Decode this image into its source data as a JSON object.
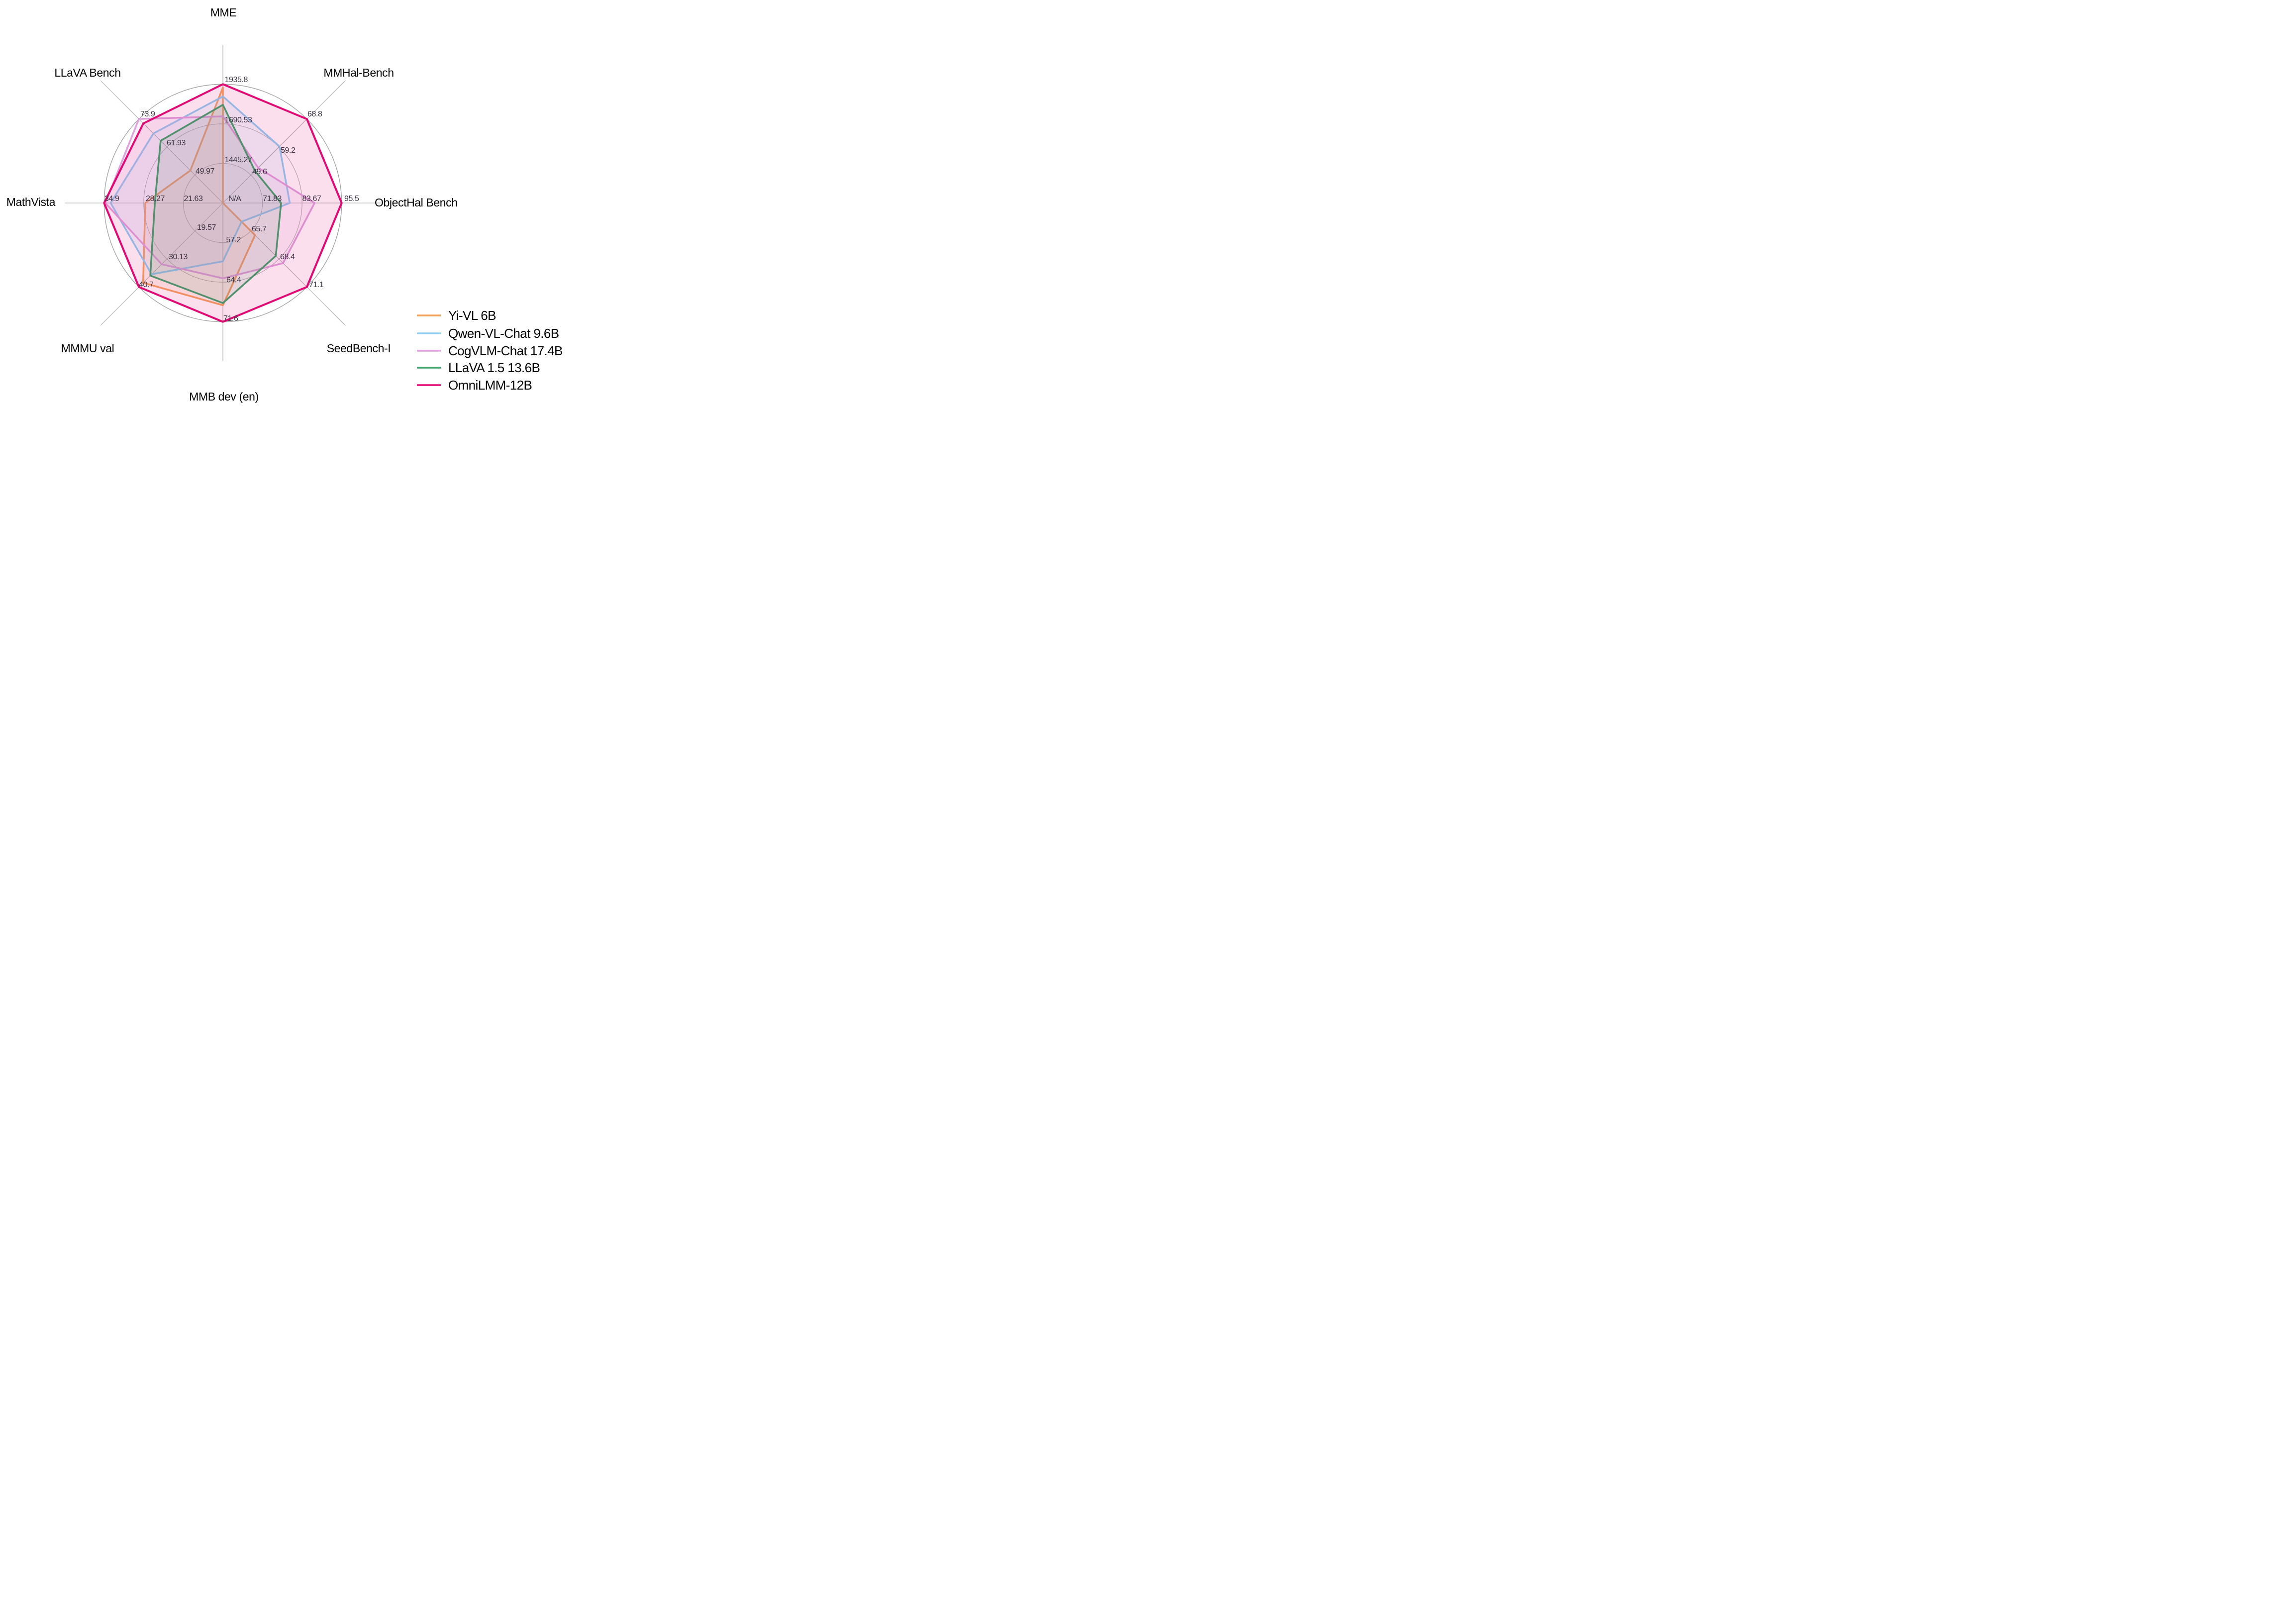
{
  "chart_data": {
    "type": "radar",
    "title": "",
    "legend_position": "lower right",
    "grid": "3 concentric rings + 8 spokes",
    "center_label": "N/A",
    "axes": [
      {
        "label": "MME",
        "min": 1200,
        "max": 1935.8,
        "ticks": [
          "1445.27",
          "1690.53",
          "1935.8"
        ]
      },
      {
        "label": "MMHal-Bench",
        "min": 40,
        "max": 68.8,
        "ticks": [
          "49.6",
          "59.2",
          "68.8"
        ]
      },
      {
        "label": "ObjectHal Bench",
        "min": 60,
        "max": 95.5,
        "ticks": [
          "71.83",
          "83.67",
          "95.5"
        ],
        "center_label": "N/A"
      },
      {
        "label": "SeedBench-I",
        "min": 63,
        "max": 71.1,
        "ticks": [
          "65.7",
          "68.4",
          "71.1"
        ]
      },
      {
        "label": "MMB dev (en)",
        "min": 50,
        "max": 71.6,
        "ticks": [
          "57.2",
          "64.4",
          "71.6"
        ]
      },
      {
        "label": "MMMU val",
        "min": 9,
        "max": 40.7,
        "ticks": [
          "19.57",
          "30.13",
          "40.7"
        ]
      },
      {
        "label": "MathVista",
        "min": 15,
        "max": 34.9,
        "ticks": [
          "21.63",
          "28.27",
          "34.9"
        ]
      },
      {
        "label": "LLaVA Bench",
        "min": 38,
        "max": 73.9,
        "ticks": [
          "49.97",
          "61.93",
          "73.9"
        ]
      }
    ],
    "series": [
      {
        "name": "Yi-VL 6B",
        "color": "#F5A25D",
        "values": [
          1915.1,
          null,
          null,
          66.1,
          68.6,
          39.1,
          28.0,
          51.9
        ]
      },
      {
        "name": "Qwen-VL-Chat 9.6B",
        "color": "#8DCFF4",
        "values": [
          1860.0,
          59.4,
          80.0,
          64.8,
          60.6,
          35.9,
          33.8,
          67.7
        ]
      },
      {
        "name": "CogVLM-Chat 17.4B",
        "color": "#DEA3DE",
        "values": [
          1736.6,
          52.1,
          87.4,
          68.8,
          63.7,
          32.1,
          34.7,
          73.9
        ]
      },
      {
        "name": "LLaVA 1.5 13.6B",
        "color": "#3BA56B",
        "values": [
          1808.4,
          51.0,
          77.4,
          68.1,
          68.2,
          36.4,
          26.4,
          64.6
        ]
      },
      {
        "name": "OmniLMM-12B",
        "color": "#E20975",
        "values": [
          1935.8,
          68.8,
          95.5,
          71.1,
          71.6,
          40.7,
          34.9,
          72.0
        ]
      }
    ]
  }
}
